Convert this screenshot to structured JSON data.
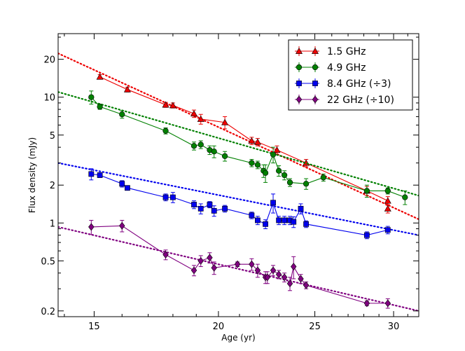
{
  "chart_data": {
    "type": "scatter",
    "xlabel": "Age (yr)",
    "ylabel": "Flux density (mJy)",
    "xscale": "log",
    "yscale": "log",
    "xlim": [
      13.8,
      31.8
    ],
    "ylim": [
      0.18,
      32
    ],
    "xticks": [
      15,
      20,
      25,
      30
    ],
    "xtick_labels": [
      "15",
      "20",
      "25",
      "30"
    ],
    "yticks": [
      0.2,
      0.5,
      1,
      2,
      5,
      10,
      20
    ],
    "ytick_labels": [
      "0.2",
      "0.5",
      "1",
      "2",
      "5",
      "10",
      "20"
    ],
    "legend_position": "top-right",
    "series": [
      {
        "name": "1.5 GHz",
        "color": "#ee0000",
        "marker": "triangle",
        "x": [
          15.2,
          16.2,
          17.7,
          18.0,
          18.9,
          19.2,
          20.3,
          21.6,
          21.9,
          22.9,
          24.5,
          28.2,
          29.6,
          29.6
        ],
        "y": [
          14.5,
          11.5,
          8.7,
          8.6,
          7.4,
          6.7,
          6.3,
          4.5,
          4.4,
          3.8,
          3.0,
          1.8,
          1.5,
          1.3
        ],
        "err": [
          0.6,
          0.5,
          0.4,
          0.4,
          0.5,
          0.6,
          0.7,
          0.3,
          0.3,
          0.3,
          0.2,
          0.15,
          0.12,
          0.1
        ],
        "fit": [
          [
            13.8,
            22.3
          ],
          [
            31.8,
            1.07
          ]
        ]
      },
      {
        "name": "4.9 GHz",
        "color": "#008000",
        "marker": "circle",
        "x": [
          14.9,
          15.2,
          16.0,
          17.7,
          18.9,
          19.2,
          19.6,
          19.8,
          20.3,
          21.6,
          21.9,
          22.2,
          22.3,
          22.7,
          23.0,
          23.3,
          23.6,
          24.5,
          25.5,
          28.2,
          29.6,
          30.8
        ],
        "y": [
          10.0,
          8.4,
          7.3,
          5.4,
          4.1,
          4.2,
          3.8,
          3.7,
          3.4,
          3.0,
          2.9,
          2.6,
          2.5,
          3.5,
          2.6,
          2.4,
          2.1,
          2.05,
          2.3,
          1.8,
          1.8,
          1.6
        ],
        "err": [
          1.2,
          0.4,
          0.5,
          0.3,
          0.3,
          0.3,
          0.3,
          0.4,
          0.3,
          0.2,
          0.2,
          0.3,
          0.4,
          0.5,
          0.25,
          0.2,
          0.15,
          0.2,
          0.15,
          0.2,
          0.1,
          0.2
        ],
        "fit": [
          [
            13.8,
            11.0
          ],
          [
            31.8,
            1.65
          ]
        ]
      },
      {
        "name": "8.4 GHz (÷3)",
        "color": "#0000ee",
        "marker": "square",
        "x": [
          14.9,
          15.2,
          16.0,
          16.2,
          17.7,
          18.0,
          18.9,
          19.2,
          19.6,
          19.8,
          20.3,
          21.6,
          21.9,
          22.3,
          22.7,
          23.0,
          23.3,
          23.6,
          23.8,
          24.2,
          24.5,
          28.2,
          29.6
        ],
        "y": [
          2.45,
          2.4,
          2.05,
          1.9,
          1.6,
          1.6,
          1.4,
          1.3,
          1.4,
          1.25,
          1.3,
          1.15,
          1.05,
          0.98,
          1.45,
          1.05,
          1.05,
          1.05,
          1.02,
          1.3,
          0.98,
          0.8,
          0.88
        ],
        "err": [
          0.25,
          0.1,
          0.12,
          0.08,
          0.1,
          0.15,
          0.1,
          0.12,
          0.08,
          0.12,
          0.08,
          0.07,
          0.08,
          0.08,
          0.25,
          0.08,
          0.08,
          0.08,
          0.1,
          0.12,
          0.06,
          0.05,
          0.06
        ],
        "fit": [
          [
            13.8,
            3.0
          ],
          [
            31.8,
            0.8
          ]
        ]
      },
      {
        "name": "22 GHz (÷10)",
        "color": "#800080",
        "marker": "diamond",
        "x": [
          14.9,
          16.0,
          17.7,
          18.9,
          19.2,
          19.6,
          19.8,
          20.9,
          21.6,
          21.9,
          22.3,
          22.4,
          22.7,
          23.0,
          23.3,
          23.6,
          23.8,
          24.2,
          24.5,
          28.2,
          29.6
        ],
        "y": [
          0.93,
          0.95,
          0.56,
          0.42,
          0.5,
          0.53,
          0.44,
          0.47,
          0.47,
          0.42,
          0.37,
          0.37,
          0.42,
          0.39,
          0.37,
          0.33,
          0.45,
          0.36,
          0.32,
          0.23,
          0.23
        ],
        "err": [
          0.12,
          0.1,
          0.05,
          0.04,
          0.05,
          0.05,
          0.05,
          0.02,
          0.05,
          0.05,
          0.04,
          0.04,
          0.04,
          0.03,
          0.03,
          0.04,
          0.09,
          0.03,
          0.02,
          0.01,
          0.02
        ],
        "fit": [
          [
            13.8,
            0.93
          ],
          [
            31.8,
            0.2
          ]
        ]
      }
    ]
  }
}
